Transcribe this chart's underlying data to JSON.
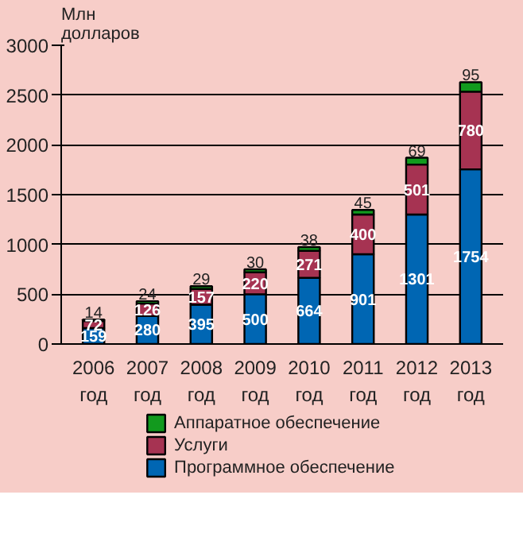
{
  "chart_data": {
    "type": "bar",
    "stacked": true,
    "ylabel": "Млн долларов",
    "categories": [
      "2006 год",
      "2007 год",
      "2008 год",
      "2009 год",
      "2010 год",
      "2011 год",
      "2012 год",
      "2013 год"
    ],
    "series": [
      {
        "name": "Программное обеспечение",
        "color": "#0066b3",
        "values": [
          159,
          280,
          395,
          500,
          664,
          901,
          1301,
          1754
        ]
      },
      {
        "name": "Услуги",
        "color": "#a63352",
        "values": [
          72,
          126,
          157,
          220,
          271,
          400,
          501,
          780
        ]
      },
      {
        "name": "Аппаратное обеспечение",
        "color": "#129a1e",
        "values": [
          14,
          24,
          29,
          30,
          38,
          45,
          69,
          95
        ]
      }
    ],
    "ylim": [
      0,
      3000
    ],
    "yticks": [
      0,
      500,
      1000,
      1500,
      2000,
      2500,
      3000
    ],
    "grid": "y",
    "legend": "bottom",
    "data_labels": true
  }
}
